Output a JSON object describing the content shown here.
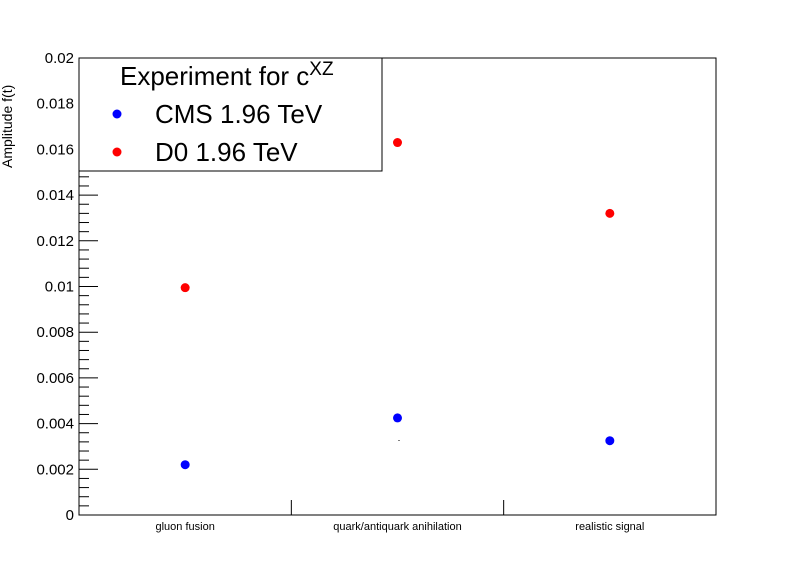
{
  "chart_data": {
    "type": "scatter",
    "ylabel": "Amplitude f(t)",
    "categories": [
      "gluon fusion",
      "quark/antiquark anihilation",
      "realistic signal"
    ],
    "ylim": [
      0,
      0.02
    ],
    "yticks": [
      "0",
      "0.002",
      "0.004",
      "0.006",
      "0.008",
      "0.01",
      "0.012",
      "0.014",
      "0.016",
      "0.018",
      "0.02"
    ],
    "legend": {
      "title_main": "Experiment for c",
      "title_sup": "XZ",
      "placement": "top-left"
    },
    "series": [
      {
        "name": "CMS 1.96 TeV",
        "color": "#0000ff",
        "values": [
          0.0022,
          0.00425,
          0.00325
        ]
      },
      {
        "name": "D0 1.96 TeV",
        "color": "#ff0000",
        "values": [
          0.00995,
          0.0163,
          0.0132
        ]
      }
    ]
  }
}
